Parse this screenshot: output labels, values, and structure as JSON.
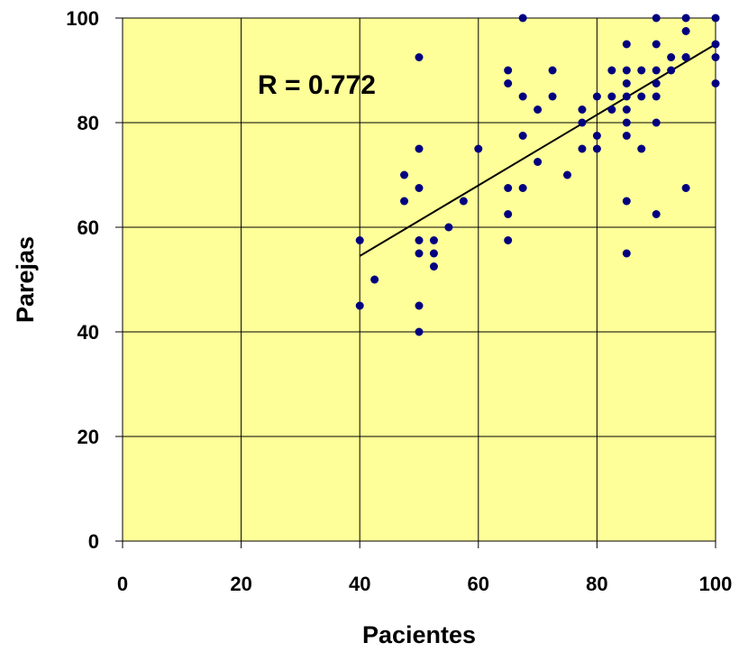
{
  "chart_data": {
    "type": "scatter",
    "title": "",
    "xlabel": "Pacientes",
    "ylabel": "Parejas",
    "xlim": [
      0,
      100
    ],
    "ylim": [
      0,
      100
    ],
    "xticks": [
      "0",
      "20",
      "40",
      "60",
      "80",
      "100"
    ],
    "yticks": [
      "0",
      "20",
      "40",
      "60",
      "80",
      "100"
    ],
    "grid": true,
    "legend": "none",
    "annotation": "R = 0.772",
    "colors": {
      "plot_background": "#ffff99",
      "point": "#000080",
      "grid": "#000000",
      "trendline": "#000000"
    },
    "trendline": {
      "x": [
        40,
        100
      ],
      "y": [
        54.5,
        95
      ]
    },
    "points": {
      "x": [
        40,
        40,
        42.5,
        47.5,
        47.5,
        50,
        50,
        50,
        50,
        50,
        50,
        50,
        52.5,
        52.5,
        52.5,
        55,
        57.5,
        60,
        65,
        65,
        65,
        65,
        65,
        67.5,
        67.5,
        67.5,
        67.5,
        70,
        70,
        72.5,
        72.5,
        75,
        77.5,
        77.5,
        77.5,
        80,
        80,
        80,
        82.5,
        82.5,
        82.5,
        85,
        85,
        85,
        85,
        85,
        85,
        85,
        85,
        85,
        87.5,
        87.5,
        87.5,
        90,
        90,
        90,
        90,
        90,
        90,
        90,
        92.5,
        92.5,
        95,
        95,
        95,
        95,
        95,
        100,
        100,
        100,
        100
      ],
      "y": [
        57.5,
        45,
        50,
        70,
        65,
        92.5,
        75,
        67.5,
        57.5,
        55,
        45,
        40,
        57.5,
        55,
        52.5,
        60,
        65,
        75,
        90,
        87.5,
        67.5,
        62.5,
        57.5,
        100,
        85,
        77.5,
        67.5,
        82.5,
        72.5,
        90,
        85,
        70,
        82.5,
        80,
        75,
        85,
        77.5,
        75,
        90,
        85,
        82.5,
        95,
        90,
        87.5,
        85,
        82.5,
        80,
        77.5,
        65,
        55,
        90,
        85,
        75,
        100,
        95,
        90,
        87.5,
        85,
        80,
        62.5,
        92.5,
        90,
        100,
        97.5,
        92.5,
        92.5,
        67.5,
        100,
        95,
        92.5,
        87.5
      ]
    }
  }
}
